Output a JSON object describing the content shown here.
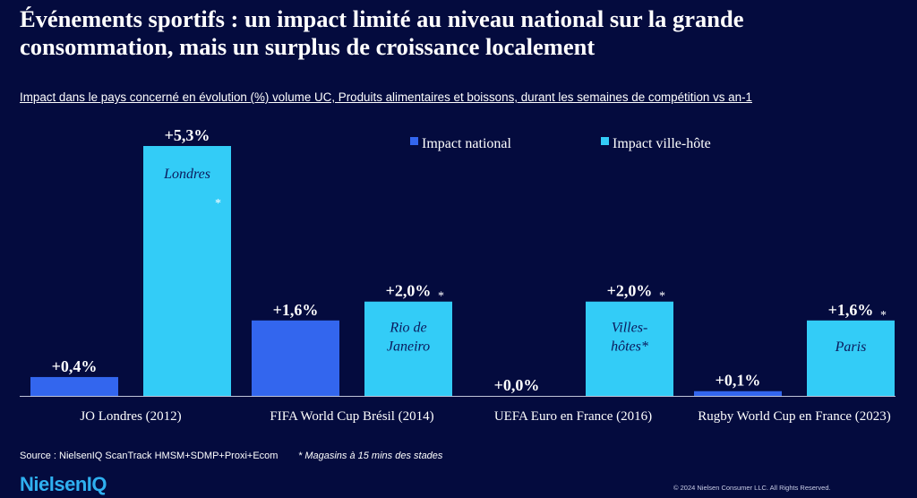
{
  "page": {
    "title_line1": "Événements sportifs : un impact limité au niveau national sur la grande",
    "title_line2": "consommation, mais un surplus de croissance localement",
    "subtitle": "Impact dans le pays concerné en évolution (%) volume UC, Produits alimentaires et boissons, durant les semaines de compétition vs an-1",
    "source": "Source : NielsenIQ ScanTrack HMSM+SDMP+Proxi+Ecom",
    "footnote": "* Magasins à 15 mins des stades",
    "logo": "NielsenIQ",
    "copyright": "© 2024 Nielsen Consumer LLC. All Rights Reserved."
  },
  "chart_data": {
    "type": "bar",
    "categories": [
      "JO Londres (2012)",
      "FIFA World Cup Brésil (2014)",
      "UEFA Euro en France (2016)",
      "Rugby World Cup en France (2023)"
    ],
    "series": [
      {
        "name": "Impact national",
        "color": "#3366ee",
        "values": [
          0.4,
          1.6,
          0.0,
          0.1
        ],
        "labels": [
          "+0,4%",
          "+1,6%",
          "+0,0%",
          "+0,1%"
        ],
        "inner_labels": [
          "",
          "",
          "",
          ""
        ],
        "asterisk": [
          false,
          false,
          false,
          false
        ]
      },
      {
        "name": "Impact ville-hôte",
        "color": "#33ccf7",
        "values": [
          5.3,
          2.0,
          2.0,
          1.6
        ],
        "labels": [
          "+5,3%",
          "+2,0%",
          "+2,0%",
          "+1,6%"
        ],
        "inner_labels": [
          "Londres",
          "Rio de Janeiro",
          "Villes-hôtes*",
          "Paris"
        ],
        "asterisk": [
          true,
          true,
          true,
          true
        ]
      }
    ],
    "ylim": [
      0,
      5.3
    ],
    "grid": false,
    "legend": "top-center"
  }
}
